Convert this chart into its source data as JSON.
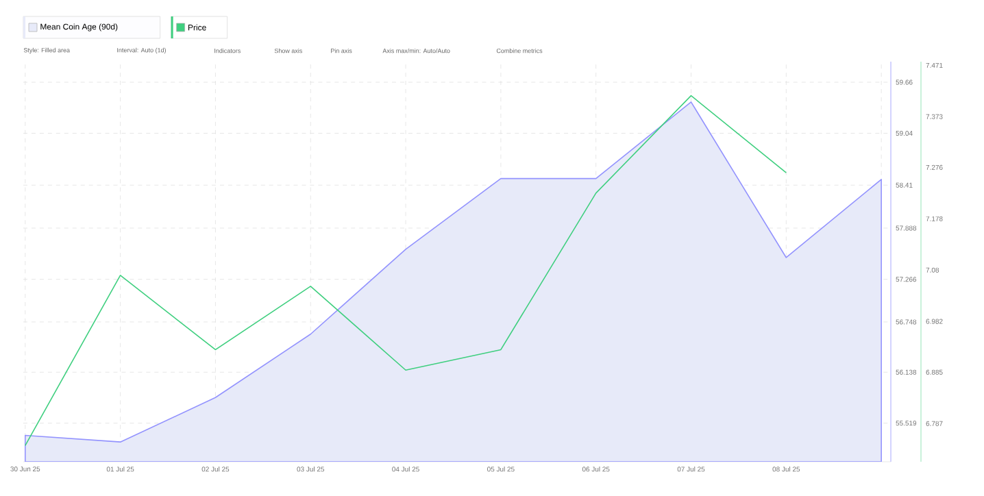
{
  "chart_data": {
    "type": "area",
    "categories": [
      "30 Jun 25",
      "01 Jul 25",
      "02 Jul 25",
      "03 Jul 25",
      "04 Jul 25",
      "05 Jul 25",
      "06 Jul 25",
      "07 Jul 25",
      "08 Jul 25",
      null
    ],
    "series": [
      {
        "name": "Mean Coin Age (90d)",
        "color": "#e7eaf9",
        "values": [
          55.37,
          55.29,
          55.83,
          56.6,
          57.63,
          58.49,
          58.49,
          59.42,
          57.53,
          58.48
        ]
      },
      {
        "name": "Price",
        "type": "line",
        "axis": "y2",
        "color": "#3fcf7f",
        "values": [
          6.745,
          7.07,
          6.928,
          7.049,
          6.889,
          6.928,
          7.227,
          7.413,
          7.266,
          null
        ]
      }
    ],
    "ylim": [
      55.05,
      59.91
    ],
    "yticks": [
      55.519,
      56.138,
      56.748,
      57.266,
      57.888,
      58.41,
      59.04,
      59.66
    ],
    "y2lim": [
      6.714,
      7.478
    ],
    "y2ticks": [
      6.787,
      6.885,
      6.982,
      7.08,
      7.178,
      7.276,
      7.373,
      7.471
    ],
    "grid": true,
    "legend": "top left",
    "annotations": [
      "Style: Filled area",
      "Interval: Auto (1d)",
      "Indicators",
      "Show axis",
      "Pin axis",
      "Axis max/min: Auto/Auto",
      "Combine metrics"
    ]
  }
}
